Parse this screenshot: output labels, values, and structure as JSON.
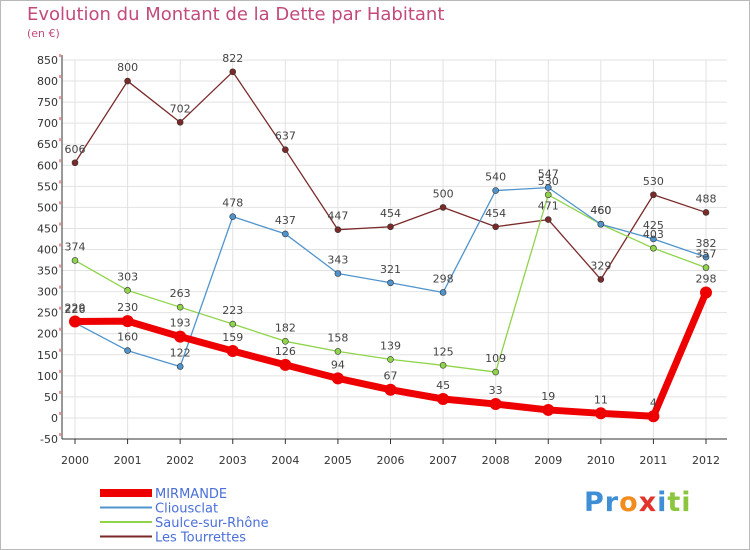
{
  "chart_data": {
    "type": "line",
    "title": "Evolution du Montant de la Dette par Habitant",
    "subtitle": "(en €)",
    "x": [
      "2000",
      "2001",
      "2002",
      "2003",
      "2004",
      "2005",
      "2006",
      "2007",
      "2008",
      "2009",
      "2010",
      "2011",
      "2012"
    ],
    "ylim": [
      -50,
      850
    ],
    "yticks": [
      -50,
      0,
      50,
      100,
      150,
      200,
      250,
      300,
      350,
      400,
      450,
      500,
      550,
      600,
      650,
      700,
      750,
      800,
      850
    ],
    "grid": true,
    "legend": "bottom-left",
    "series": [
      {
        "name": "MIRMANDE",
        "color": "#ee0000",
        "values": [
          229,
          230,
          193,
          159,
          126,
          94,
          67,
          45,
          33,
          19,
          11,
          4,
          298
        ],
        "labels": [
          "229",
          "230",
          "193",
          "159",
          "126",
          "94",
          "67",
          "45",
          "33",
          "19",
          "11",
          "4",
          "298"
        ]
      },
      {
        "name": "Cliousclat",
        "color": "#4f94cd",
        "values": [
          226,
          160,
          122,
          478,
          437,
          343,
          321,
          298,
          540,
          547,
          460,
          425,
          382
        ],
        "labels": [
          "226",
          "160",
          "122",
          "478",
          "437",
          "343",
          "321",
          "298",
          "540",
          "547",
          "460",
          "425",
          "382"
        ]
      },
      {
        "name": "Saulce-sur-Rhône",
        "color": "#8fd44a",
        "values": [
          374,
          303,
          263,
          223,
          182,
          158,
          139,
          125,
          109,
          530,
          460,
          403,
          357
        ],
        "labels": [
          "374",
          "303",
          "263",
          "223",
          "182",
          "158",
          "139",
          "125",
          "109",
          "530",
          "460",
          "403",
          "357"
        ]
      },
      {
        "name": "Les Tourrettes",
        "color": "#7b2a2a",
        "values": [
          606,
          800,
          702,
          822,
          637,
          447,
          454,
          500,
          454,
          471,
          329,
          530,
          488
        ],
        "labels": [
          "606",
          "800",
          "702",
          "822",
          "637",
          "447",
          "454",
          "500",
          "454",
          "471",
          "329",
          "530",
          "488"
        ]
      }
    ]
  },
  "brand": {
    "letters": [
      "P",
      "r",
      "o",
      "x",
      "i",
      "t",
      "i"
    ],
    "colors": [
      "#3f8fd6",
      "#3f8fd6",
      "#f28c1e",
      "#e2342c",
      "#3f8fd6",
      "#8cc63f",
      "#8cc63f"
    ]
  }
}
